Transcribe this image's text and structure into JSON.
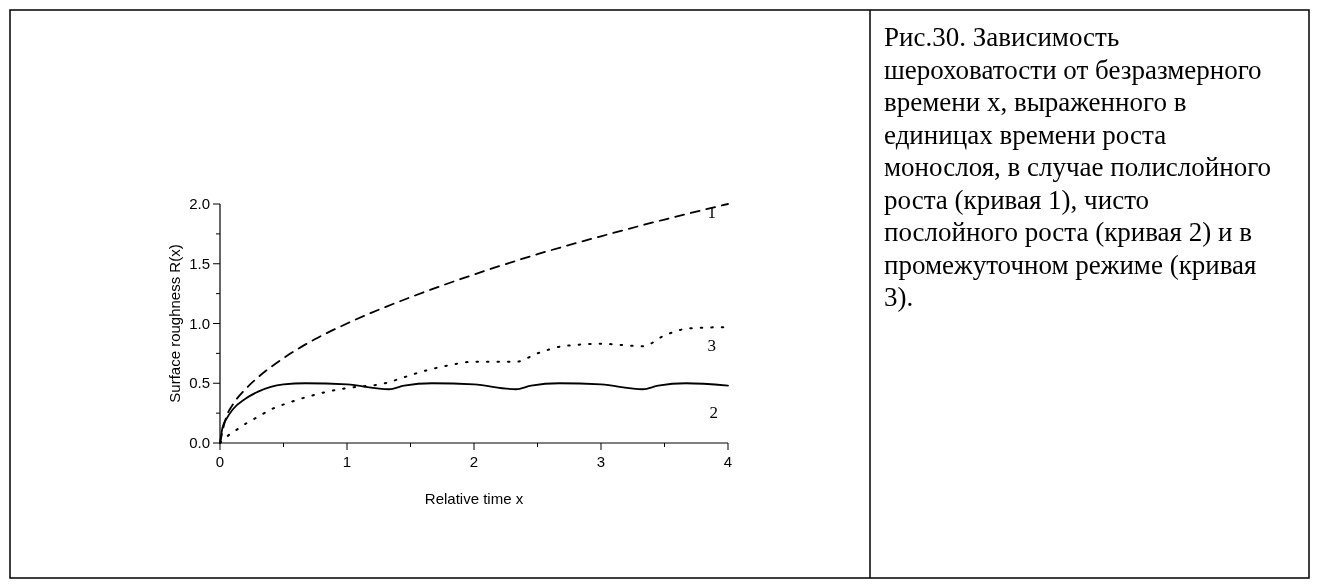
{
  "chart_data": {
    "type": "line",
    "xlabel": "Relative time x",
    "ylabel": "Surface roughness R(x)",
    "xlim": [
      0,
      4
    ],
    "ylim": [
      0,
      2
    ],
    "xticks": [
      0,
      {
        "value": 0.5,
        "label": null
      },
      1,
      {
        "value": 1.5,
        "label": null
      },
      2,
      {
        "value": 2.5,
        "label": null
      },
      3,
      {
        "value": 3.5,
        "label": null
      },
      4
    ],
    "yticks": [
      {
        "value": 0,
        "label": "0.0"
      },
      {
        "value": 0.25,
        "label": null
      },
      {
        "value": 0.5,
        "label": "0.5"
      },
      {
        "value": 0.75,
        "label": null
      },
      {
        "value": 1,
        "label": "1.0"
      },
      {
        "value": 1.25,
        "label": null
      },
      1.5,
      {
        "value": 1.75,
        "label": null
      },
      {
        "value": 2,
        "label": "2.0"
      }
    ],
    "grid": false,
    "series": [
      {
        "name": "1",
        "color": "#000000",
        "line_style": "dashed",
        "x": [
          0,
          0.05,
          0.1,
          0.2,
          0.3,
          0.5,
          0.75,
          1,
          1.5,
          2,
          2.5,
          3,
          3.5,
          4
        ],
        "values": [
          0,
          0.22,
          0.32,
          0.45,
          0.55,
          0.71,
          0.87,
          1.0,
          1.22,
          1.41,
          1.58,
          1.73,
          1.87,
          2.0
        ]
      },
      {
        "name": "2",
        "color": "#000000",
        "line_style": "solid",
        "x": [
          0,
          0.02,
          0.05,
          0.1,
          0.2,
          0.3,
          0.4,
          0.5,
          0.67,
          1,
          1.33,
          1.45,
          1.67,
          2,
          2.33,
          2.45,
          2.67,
          3,
          3.33,
          3.45,
          3.67,
          4
        ],
        "values": [
          0,
          0.13,
          0.2,
          0.28,
          0.37,
          0.43,
          0.47,
          0.49,
          0.5,
          0.49,
          0.45,
          0.48,
          0.5,
          0.49,
          0.45,
          0.48,
          0.5,
          0.49,
          0.45,
          0.48,
          0.5,
          0.48
        ]
      },
      {
        "name": "3",
        "color": "#000000",
        "line_style": "dotted",
        "x": [
          0,
          0.05,
          0.13,
          0.2,
          0.3,
          0.4,
          0.55,
          0.7,
          0.85,
          1,
          1.3,
          1.45,
          1.6,
          1.8,
          2,
          2.33,
          2.5,
          2.7,
          3,
          3.33,
          3.5,
          3.7,
          4
        ],
        "values": [
          0,
          0.05,
          0.11,
          0.16,
          0.22,
          0.28,
          0.34,
          0.39,
          0.43,
          0.46,
          0.5,
          0.55,
          0.6,
          0.65,
          0.68,
          0.68,
          0.75,
          0.81,
          0.83,
          0.81,
          0.9,
          0.96,
          0.97
        ]
      }
    ],
    "annotations": [
      "Рис.30. Зависимость шероховатости от безразмерного времени x, выраженного в единицах времени роста монослоя, в случае  полислойного роста (кривая 1), чисто послойного роста (кривая 2) и в промежуточном режиме (кривая 3)."
    ]
  }
}
